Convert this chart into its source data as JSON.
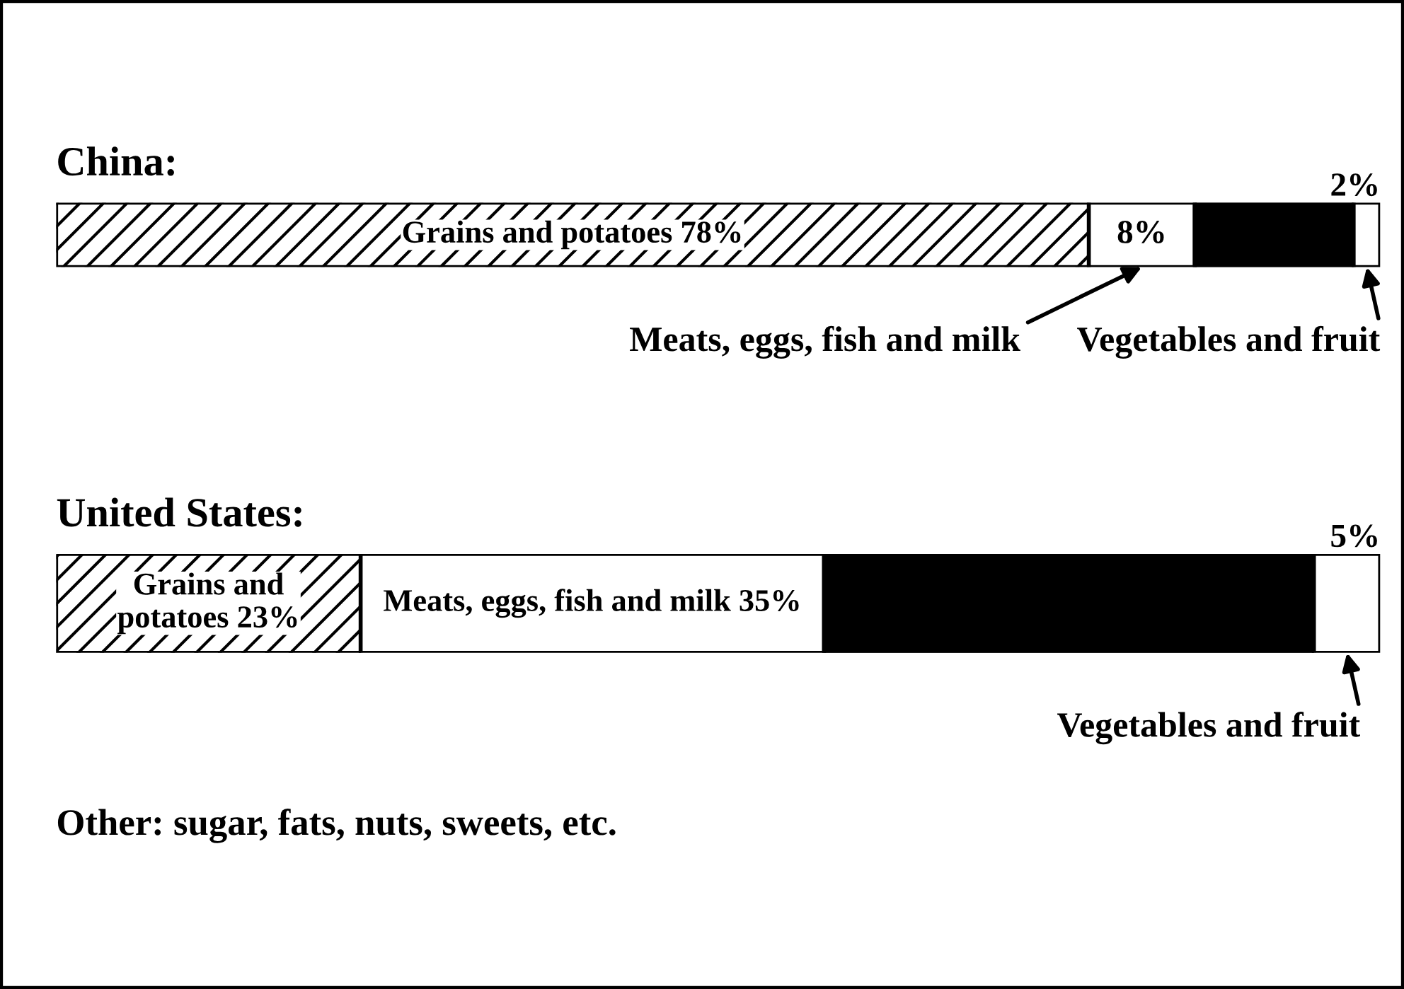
{
  "chart_data": [
    {
      "type": "bar",
      "orientation": "horizontal",
      "stacked": true,
      "title": "China:",
      "categories": [
        null
      ],
      "series": [
        {
          "name": "Grains and potatoes",
          "color": "#ffffff",
          "values": [
            78
          ],
          "value_labels": [
            "78%"
          ]
        },
        {
          "name": "Meats, eggs, fish and milk",
          "color": "#ffffff",
          "values": [
            8
          ],
          "value_labels": [
            "8%"
          ]
        },
        {
          "color": "#000000",
          "values": [
            12
          ]
        },
        {
          "name": "Vegetables and fruit",
          "color": "#ffffff",
          "values": [
            2
          ],
          "value_labels": [
            "2%"
          ]
        }
      ]
    },
    {
      "type": "bar",
      "orientation": "horizontal",
      "stacked": true,
      "title": "United States:",
      "categories": [
        null
      ],
      "series": [
        {
          "name": "Grains and potatoes",
          "color": "#ffffff",
          "values": [
            23
          ],
          "value_labels": [
            "23%"
          ]
        },
        {
          "name": "Meats, eggs, fish and milk",
          "color": "#ffffff",
          "values": [
            35
          ],
          "value_labels": [
            "35%"
          ]
        },
        {
          "color": "#000000",
          "values": [
            37
          ]
        },
        {
          "name": "Vegetables and fruit",
          "color": "#ffffff",
          "values": [
            5
          ],
          "value_labels": [
            "5%"
          ]
        }
      ],
      "annotations": [
        "Other: sugar, fats, nuts, sweets, etc."
      ]
    }
  ]
}
